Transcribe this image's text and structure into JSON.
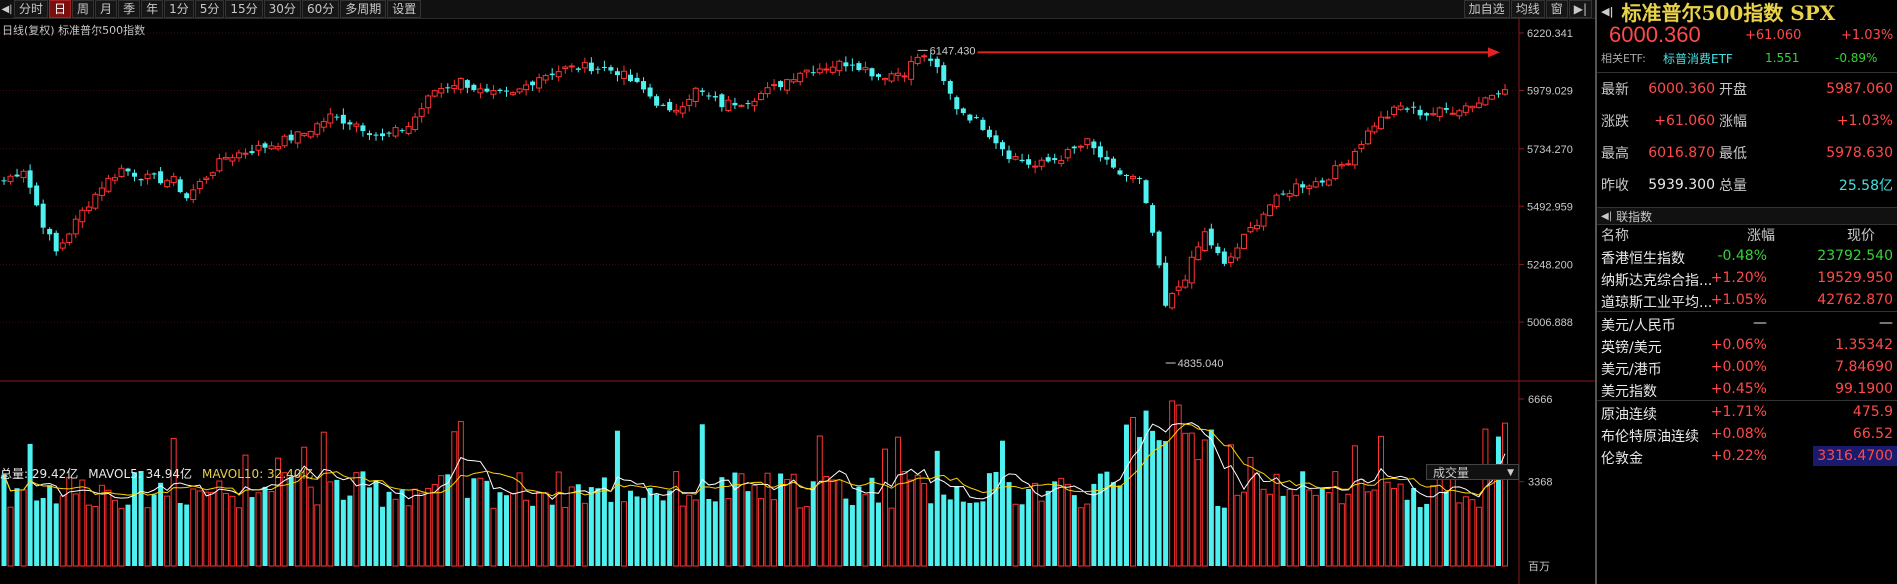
{
  "toolbar": {
    "tabs": [
      "分时",
      "日",
      "周",
      "月",
      "季",
      "年",
      "1分",
      "5分",
      "15分",
      "30分",
      "60分",
      "多周期",
      "设置"
    ],
    "active_index": 1,
    "right_buttons": [
      "加自选",
      "均线",
      "窗"
    ]
  },
  "chart_title": "日线(复权)  标准普尔500指数",
  "price_axis": [
    "6220.341",
    "5979.029",
    "5734.270",
    "5492.959",
    "5248.200",
    "5006.888"
  ],
  "annotations": {
    "high": "6147.430",
    "low": "4835.040"
  },
  "volume": {
    "total_label": "总量: 29.42亿",
    "ma5_label": "MAVOL5: 34.94亿",
    "ma10_label": "MAVOL10: 32.40亿",
    "selector": "成交量",
    "axis": [
      "6666",
      "3368",
      "百万"
    ]
  },
  "colors": {
    "up": "#ff3232",
    "down": "#4ef0f0",
    "ma5": "#ffffff",
    "ma10": "#ffd200",
    "accent": "#e8d24a"
  },
  "quote": {
    "title": "标准普尔500指数 SPX",
    "price": "6000.360",
    "change": "+61.060",
    "change_pct": "+1.03%",
    "etf_label": "相关ETF:",
    "etf_name": "标普消费ETF",
    "etf_price": "1.551",
    "etf_pct": "-0.89%",
    "rows": [
      {
        "l1": "最新",
        "v1": "6000.360",
        "l2": "开盘",
        "v2": "5987.060"
      },
      {
        "l1": "涨跌",
        "v1": "+61.060",
        "l2": "涨幅",
        "v2": "+1.03%"
      },
      {
        "l1": "最高",
        "v1": "6016.870",
        "l2": "最低",
        "v2": "5978.630"
      },
      {
        "l1": "昨收",
        "v1": "5939.300",
        "l2": "总量",
        "v2": "25.58亿"
      }
    ]
  },
  "indices": {
    "section": "联指数",
    "headers": [
      "名称",
      "涨幅",
      "现价"
    ],
    "items": [
      {
        "name": "香港恒生指数",
        "pct": "-0.48%",
        "price": "23792.540"
      },
      {
        "name": "纳斯达克综合指...",
        "pct": "+1.20%",
        "price": "19529.950"
      },
      {
        "name": "道琼斯工业平均...",
        "pct": "+1.05%",
        "price": "42762.870"
      },
      {
        "name": "美元/人民币",
        "pct": "—",
        "price": "—"
      },
      {
        "name": "英镑/美元",
        "pct": "+0.06%",
        "price": "1.35342"
      },
      {
        "name": "美元/港币",
        "pct": "+0.00%",
        "price": "7.84690"
      },
      {
        "name": "美元指数",
        "pct": "+0.45%",
        "price": "99.1900"
      },
      {
        "name": "原油连续",
        "pct": "+1.71%",
        "price": "475.9"
      },
      {
        "name": "布伦特原油连续",
        "pct": "+0.08%",
        "price": "66.52"
      },
      {
        "name": "伦敦金",
        "pct": "+0.22%",
        "price": "3316.4700"
      }
    ]
  },
  "chart_data": {
    "type": "candlestick",
    "price_range": [
      4835.04,
      6220.341
    ],
    "keypoints": [
      [
        0,
        5600
      ],
      [
        3,
        5650
      ],
      [
        6,
        5420
      ],
      [
        8,
        5300
      ],
      [
        12,
        5470
      ],
      [
        15,
        5580
      ],
      [
        18,
        5650
      ],
      [
        22,
        5610
      ],
      [
        26,
        5600
      ],
      [
        28,
        5530
      ],
      [
        31,
        5620
      ],
      [
        34,
        5700
      ],
      [
        38,
        5730
      ],
      [
        42,
        5760
      ],
      [
        46,
        5800
      ],
      [
        50,
        5870
      ],
      [
        54,
        5840
      ],
      [
        58,
        5780
      ],
      [
        62,
        5830
      ],
      [
        66,
        5980
      ],
      [
        70,
        6020
      ],
      [
        74,
        5960
      ],
      [
        78,
        5960
      ],
      [
        82,
        6040
      ],
      [
        86,
        6070
      ],
      [
        90,
        6080
      ],
      [
        94,
        6060
      ],
      [
        98,
        5980
      ],
      [
        102,
        5880
      ],
      [
        106,
        5980
      ],
      [
        110,
        5920
      ],
      [
        114,
        5940
      ],
      [
        118,
        5990
      ],
      [
        122,
        6060
      ],
      [
        126,
        6080
      ],
      [
        130,
        6100
      ],
      [
        134,
        6040
      ],
      [
        138,
        6060
      ],
      [
        140,
        6120
      ],
      [
        142,
        6110
      ],
      [
        146,
        5910
      ],
      [
        150,
        5830
      ],
      [
        154,
        5710
      ],
      [
        158,
        5660
      ],
      [
        162,
        5700
      ],
      [
        166,
        5760
      ],
      [
        170,
        5640
      ],
      [
        174,
        5600
      ],
      [
        176,
        5380
      ],
      [
        178,
        5070
      ],
      [
        181,
        5200
      ],
      [
        184,
        5380
      ],
      [
        187,
        5240
      ],
      [
        190,
        5360
      ],
      [
        194,
        5500
      ],
      [
        198,
        5580
      ],
      [
        202,
        5600
      ],
      [
        206,
        5690
      ],
      [
        210,
        5840
      ],
      [
        214,
        5910
      ],
      [
        218,
        5880
      ],
      [
        222,
        5900
      ],
      [
        226,
        5930
      ],
      [
        230,
        6000
      ]
    ],
    "volume_range": [
      0,
      6666
    ]
  }
}
